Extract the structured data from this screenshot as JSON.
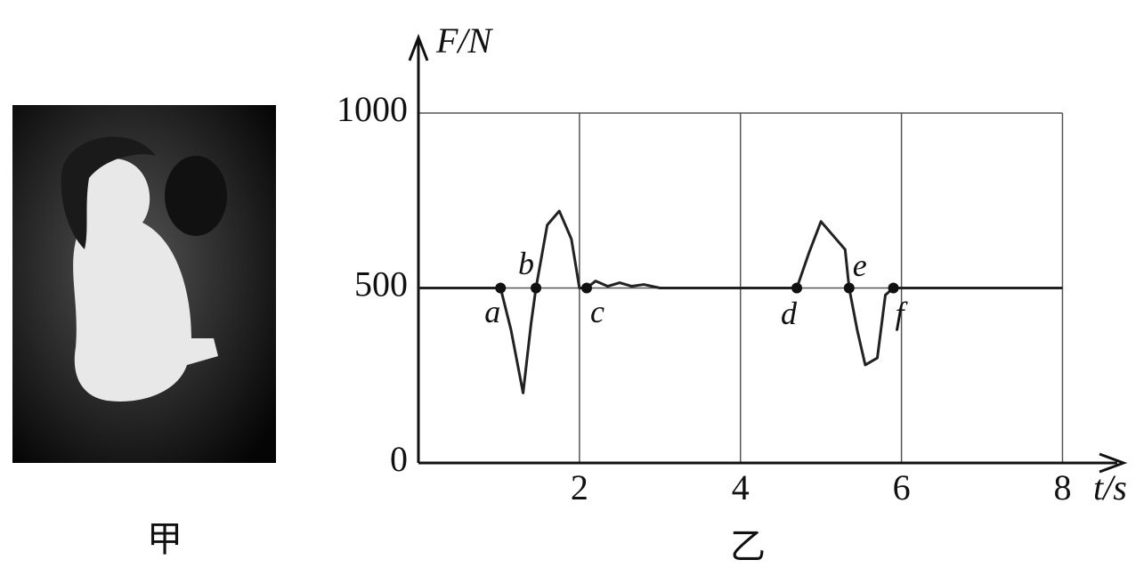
{
  "chart_data": {
    "type": "line",
    "caption_left": "甲",
    "caption_right": "乙",
    "xlabel": "t/s",
    "ylabel": "F/N",
    "x": [
      0,
      1.02,
      1.15,
      1.3,
      1.4,
      1.46,
      1.6,
      1.75,
      1.9,
      2.0,
      2.09,
      2.2,
      2.35,
      2.5,
      2.65,
      2.8,
      3.0,
      4.7,
      4.85,
      5.0,
      5.15,
      5.3,
      5.35,
      5.45,
      5.55,
      5.7,
      5.8,
      5.9,
      8
    ],
    "series": [
      {
        "color": "#222",
        "values": [
          500,
          500,
          380,
          200,
          400,
          500,
          680,
          720,
          640,
          500,
          500,
          520,
          505,
          515,
          505,
          510,
          500,
          500,
          600,
          690,
          650,
          610,
          500,
          380,
          280,
          300,
          480,
          500,
          500
        ]
      }
    ],
    "points": [
      {
        "label": "a",
        "x": 1.02,
        "y": 500
      },
      {
        "label": "b",
        "x": 1.46,
        "y": 500
      },
      {
        "label": "c",
        "x": 2.09,
        "y": 500
      },
      {
        "label": "d",
        "x": 4.7,
        "y": 500
      },
      {
        "label": "e",
        "x": 5.35,
        "y": 500
      },
      {
        "label": "f",
        "x": 5.9,
        "y": 500
      }
    ],
    "xlim": [
      0,
      8
    ],
    "ylim": [
      0,
      1000
    ],
    "xticks": [
      2,
      4,
      6,
      8
    ],
    "yticks": [
      0,
      500,
      1000
    ],
    "grid": true
  }
}
